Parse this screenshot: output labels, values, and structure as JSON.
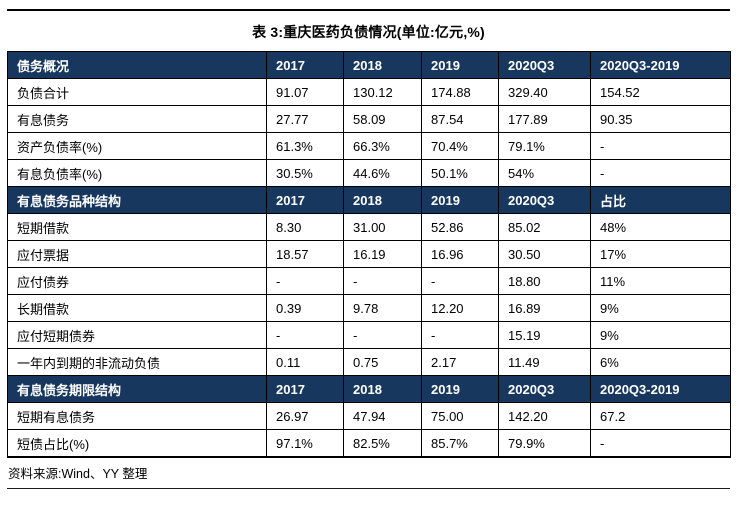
{
  "title": "表 3:重庆医药负债情况(单位:亿元,%)",
  "footer": {
    "source": "资料来源:Wind、YY 整理"
  },
  "colors": {
    "header_bg": "#17375E",
    "header_fg": "#FFFFFF",
    "border": "#000000"
  },
  "table": {
    "sections": [
      {
        "header": [
          "债务概况",
          "2017",
          "2018",
          "2019",
          "2020Q3",
          "2020Q3-2019"
        ],
        "rows": [
          [
            "负债合计",
            "91.07",
            "130.12",
            "174.88",
            "329.40",
            "154.52"
          ],
          [
            "有息债务",
            "27.77",
            "58.09",
            "87.54",
            "177.89",
            "90.35"
          ],
          [
            "资产负债率(%)",
            "61.3%",
            "66.3%",
            "70.4%",
            "79.1%",
            "-"
          ],
          [
            "有息负债率(%)",
            "30.5%",
            "44.6%",
            "50.1%",
            "54%",
            "-"
          ]
        ]
      },
      {
        "header": [
          "有息债务品种结构",
          "2017",
          "2018",
          "2019",
          "2020Q3",
          "占比"
        ],
        "rows": [
          [
            "短期借款",
            "8.30",
            "31.00",
            "52.86",
            "85.02",
            "48%"
          ],
          [
            "应付票据",
            "18.57",
            "16.19",
            "16.96",
            "30.50",
            "17%"
          ],
          [
            "应付债券",
            "-",
            "-",
            "-",
            "18.80",
            "11%"
          ],
          [
            "长期借款",
            "0.39",
            "9.78",
            "12.20",
            "16.89",
            "9%"
          ],
          [
            "应付短期债券",
            "-",
            "-",
            "-",
            "15.19",
            "9%"
          ],
          [
            "一年内到期的非流动负债",
            "0.11",
            "0.75",
            "2.17",
            "11.49",
            "6%"
          ]
        ]
      },
      {
        "header": [
          "有息债务期限结构",
          "2017",
          "2018",
          "2019",
          "2020Q3",
          "2020Q3-2019"
        ],
        "rows": [
          [
            "短期有息债务",
            "26.97",
            "47.94",
            "75.00",
            "142.20",
            "67.2"
          ],
          [
            "短债占比(%)",
            "97.1%",
            "82.5%",
            "85.7%",
            "79.9%",
            "-"
          ]
        ]
      }
    ]
  }
}
